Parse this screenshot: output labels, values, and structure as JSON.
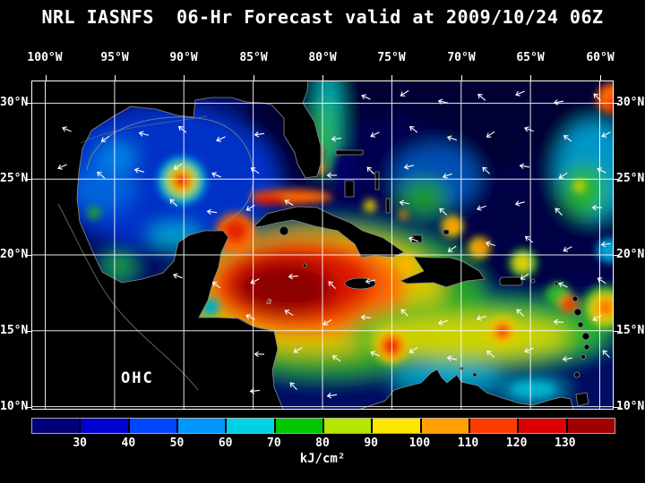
{
  "title": "NRL IASNFS  06-Hr Forecast valid at 2009/10/24 06Z",
  "map": {
    "lon_labels": [
      "100°W",
      "95°W",
      "90°W",
      "85°W",
      "80°W",
      "75°W",
      "70°W",
      "65°W",
      "60°W"
    ],
    "lat_labels_left": [
      "30°N",
      "25°N",
      "20°N",
      "15°N",
      "10°N"
    ],
    "lat_labels_right": [
      "30°N",
      "25°N",
      "20°N",
      "15°N",
      "10°N"
    ],
    "overlay_label": "OHC",
    "contour_label": "a"
  },
  "colorbar": {
    "tick_labels": [
      "30",
      "40",
      "50",
      "60",
      "70",
      "80",
      "90",
      "100",
      "110",
      "120",
      "130"
    ],
    "unit": "kJ/cm²",
    "segments": [
      "#000078",
      "#0000d2",
      "#0046ff",
      "#0096ff",
      "#00d2e6",
      "#00c800",
      "#b4e600",
      "#ffe600",
      "#ffa000",
      "#ff3c00",
      "#dc0000",
      "#a00000"
    ]
  }
}
